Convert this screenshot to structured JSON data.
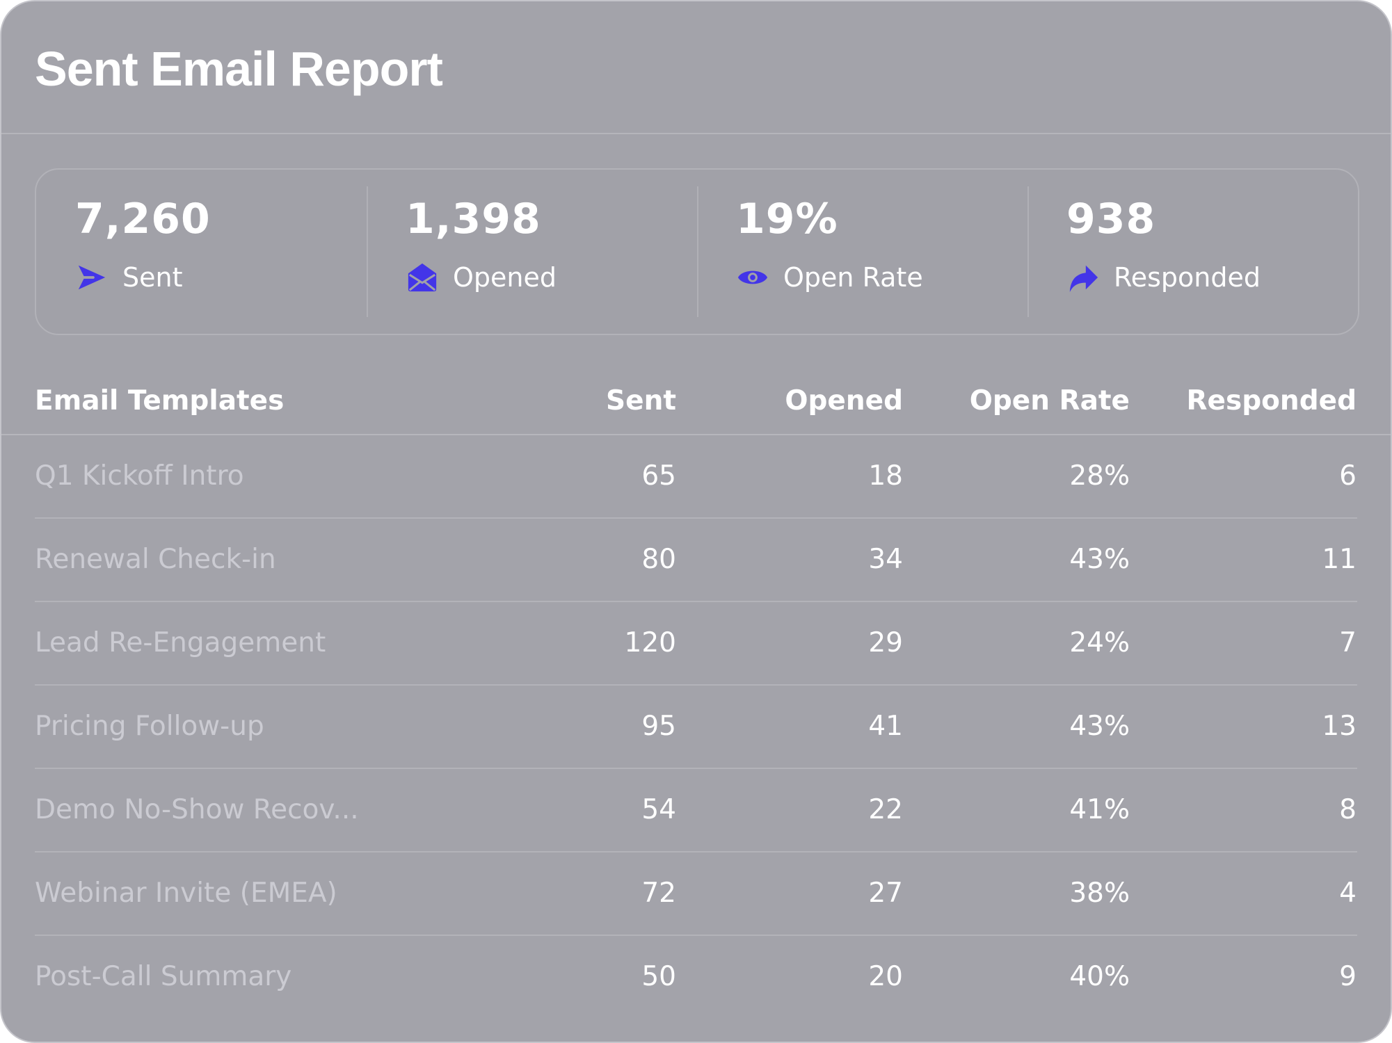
{
  "title": "Sent Email Report",
  "colors": {
    "card_background": "#a3a3aa",
    "accent": "#4335e8",
    "text": "#ffffff",
    "muted_text": "#cbcbd2"
  },
  "stats": [
    {
      "value": "7,260",
      "label": "Sent",
      "icon": "send-icon"
    },
    {
      "value": "1,398",
      "label": "Opened",
      "icon": "envelope-open-icon"
    },
    {
      "value": "19%",
      "label": "Open Rate",
      "icon": "eye-icon"
    },
    {
      "value": "938",
      "label": "Responded",
      "icon": "reply-icon"
    }
  ],
  "table": {
    "headers": {
      "name": "Email Templates",
      "sent": "Sent",
      "opened": "Opened",
      "open_rate": "Open Rate",
      "responded": "Responded"
    },
    "rows": [
      {
        "name": "Q1 Kickoff Intro",
        "sent": "65",
        "opened": "18",
        "open_rate": "28%",
        "responded": "6"
      },
      {
        "name": "Renewal Check-in",
        "sent": "80",
        "opened": "34",
        "open_rate": "43%",
        "responded": "11"
      },
      {
        "name": "Lead Re-Engagement",
        "sent": "120",
        "opened": "29",
        "open_rate": "24%",
        "responded": "7"
      },
      {
        "name": "Pricing Follow-up",
        "sent": "95",
        "opened": "41",
        "open_rate": "43%",
        "responded": "13"
      },
      {
        "name": "Demo No-Show Recov...",
        "sent": "54",
        "opened": "22",
        "open_rate": "41%",
        "responded": "8"
      },
      {
        "name": "Webinar Invite (EMEA)",
        "sent": "72",
        "opened": "27",
        "open_rate": "38%",
        "responded": "4"
      },
      {
        "name": "Post-Call Summary",
        "sent": "50",
        "opened": "20",
        "open_rate": "40%",
        "responded": "9"
      }
    ]
  }
}
